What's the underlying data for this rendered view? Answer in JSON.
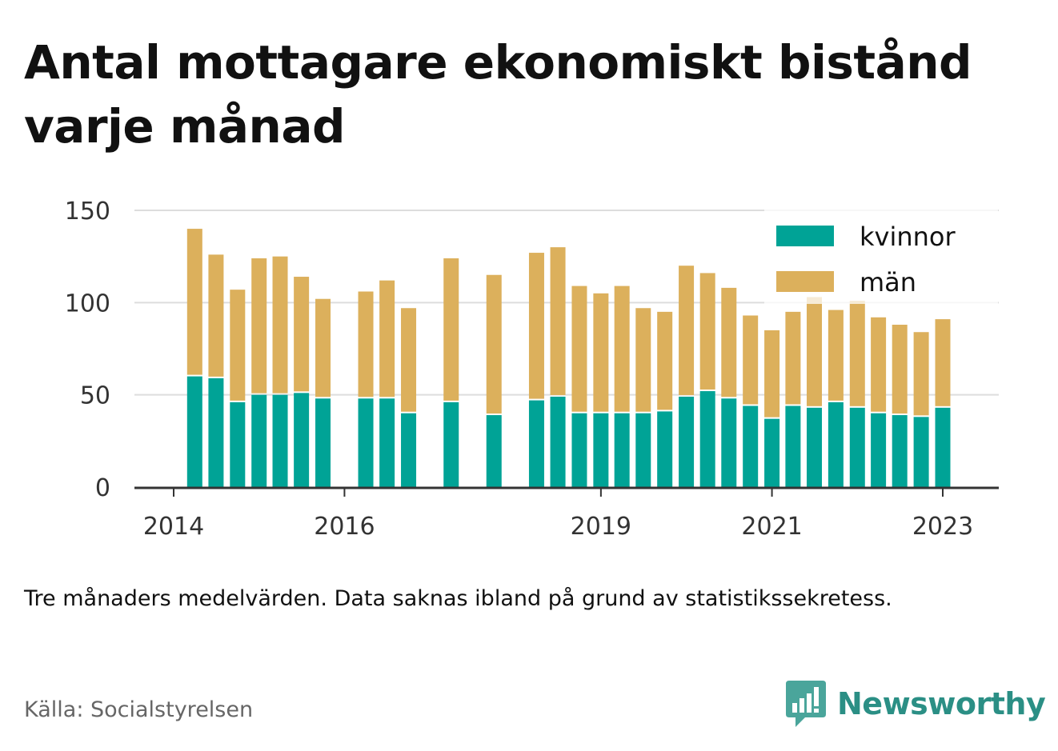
{
  "title": "Antal mottagare ekonomiskt bistånd varje månad",
  "note": "Tre månaders medelvärden. Data saknas ibland på grund av statistikssekretess.",
  "source": "Källa: Socialstyrelsen",
  "brand": {
    "name": "Newsworthy",
    "icon": "newsworthy-logo-icon",
    "color": "#2b8f85"
  },
  "colors": {
    "kvinnor": "#00a396",
    "man": "#dcb05c",
    "grid": "#dddddd",
    "axis": "#333333"
  },
  "chart_data": {
    "type": "bar",
    "stacked": true,
    "title": "Antal mottagare ekonomiskt bistånd varje månad",
    "xlabel": "",
    "ylabel": "",
    "ylim": [
      0,
      150
    ],
    "yticks": [
      0,
      50,
      100,
      150
    ],
    "xticks": [
      "2014",
      "2016",
      "2019",
      "2021",
      "2023"
    ],
    "legend": {
      "position": "top-right",
      "entries": [
        "kvinnor",
        "män"
      ]
    },
    "grid": true,
    "x": [
      "2014-04",
      "2014-07",
      "2014-10",
      "2015-01",
      "2015-04",
      "2015-07",
      "2015-10",
      "2016-01",
      "2016-04",
      "2016-07",
      "2016-10",
      "2017-01",
      "2017-04",
      "2017-07",
      "2017-10",
      "2018-01",
      "2018-04",
      "2018-07",
      "2018-10",
      "2019-01",
      "2019-04",
      "2019-07",
      "2019-10",
      "2020-01",
      "2020-04",
      "2020-07",
      "2020-10",
      "2021-01",
      "2021-04",
      "2021-07",
      "2021-10",
      "2022-01",
      "2022-04",
      "2022-07",
      "2022-10",
      "2023-01",
      "2023-04"
    ],
    "series": [
      {
        "name": "kvinnor",
        "values": [
          60,
          59,
          46,
          50,
          50,
          51,
          48,
          null,
          48,
          48,
          40,
          null,
          46,
          null,
          39,
          null,
          47,
          49,
          40,
          40,
          40,
          40,
          41,
          49,
          52,
          48,
          44,
          37,
          44,
          43,
          46,
          43,
          40,
          39,
          38,
          43,
          null
        ]
      },
      {
        "name": "män",
        "values": [
          80,
          67,
          61,
          74,
          75,
          63,
          54,
          null,
          58,
          64,
          57,
          null,
          78,
          null,
          76,
          null,
          80,
          81,
          69,
          65,
          69,
          57,
          54,
          71,
          64,
          60,
          49,
          48,
          51,
          60,
          50,
          58,
          52,
          49,
          46,
          48,
          null
        ]
      }
    ]
  }
}
